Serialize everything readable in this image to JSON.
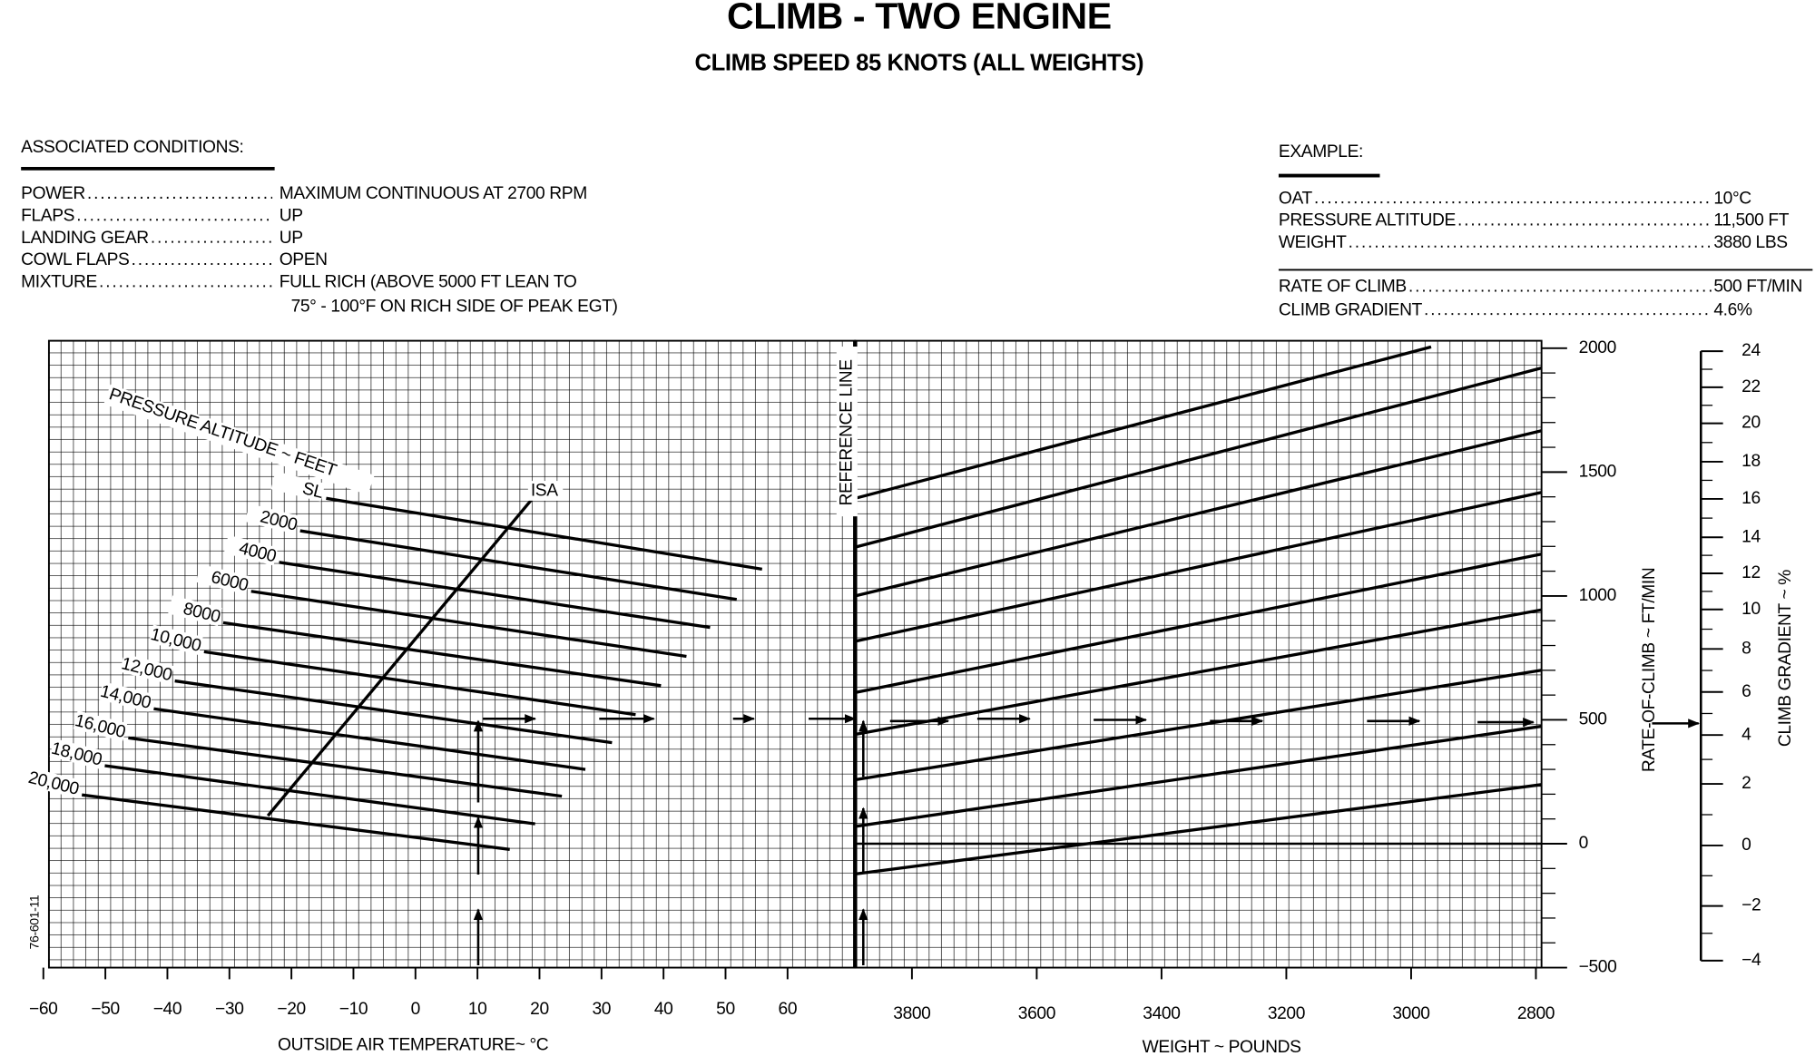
{
  "header": {
    "title": "CLIMB - TWO ENGINE",
    "subtitle": "CLIMB SPEED 85 KNOTS (ALL WEIGHTS)"
  },
  "associated_conditions": {
    "heading": "ASSOCIATED CONDITIONS:",
    "items": [
      {
        "label": "POWER",
        "value": [
          "MAXIMUM CONTINUOUS AT 2700 RPM"
        ]
      },
      {
        "label": "FLAPS",
        "value": [
          "UP"
        ]
      },
      {
        "label": "LANDING GEAR",
        "value": [
          "UP"
        ]
      },
      {
        "label": "COWL FLAPS",
        "value": [
          "OPEN"
        ]
      },
      {
        "label": "MIXTURE",
        "value": [
          "FULL RICH (ABOVE 5000 FT LEAN TO",
          "75° - 100°F ON RICH SIDE OF PEAK EGT)"
        ]
      }
    ]
  },
  "example": {
    "heading": "EXAMPLE:",
    "inputs": [
      {
        "label": "OAT",
        "value": "10°C"
      },
      {
        "label": "PRESSURE ALTITUDE",
        "value": "11,500 FT"
      },
      {
        "label": "WEIGHT",
        "value": "3880 LBS"
      }
    ],
    "results": [
      {
        "label": "RATE OF CLIMB",
        "value": "500 FT/MIN"
      },
      {
        "label": "CLIMB GRADIENT",
        "value": "4.6%"
      }
    ]
  },
  "chart_data": {
    "type": "line",
    "grid": true,
    "code": "76-601-11",
    "temperature_axis": {
      "label": "OUTSIDE AIR TEMPERATURE~ °C",
      "xlim": [
        -59.1,
        70.9
      ],
      "xticks": [
        {
          "value": -60,
          "label": "−60"
        },
        {
          "value": -50,
          "label": "−50"
        },
        {
          "value": -40,
          "label": "−40"
        },
        {
          "value": -30,
          "label": "−30"
        },
        {
          "value": -20,
          "label": "−20"
        },
        {
          "value": -10,
          "label": "−10"
        },
        0,
        10,
        20,
        30,
        40,
        50,
        60
      ]
    },
    "weight_axis": {
      "label": "WEIGHT ~ POUNDS",
      "xlim": [
        3891,
        2791
      ],
      "xticks": [
        3800,
        3600,
        3400,
        3200,
        3000,
        2800
      ]
    },
    "rate_axis": {
      "label": "RATE-OF-CLIMB ~ FT/MIN",
      "ylim": [
        -500,
        2030
      ],
      "yticks": [
        {
          "value": -500,
          "label": "−500"
        },
        0,
        500,
        1000,
        1500,
        2000
      ]
    },
    "gradient_axis": {
      "label": "CLIMB GRADIENT ~ %",
      "yticks": [
        {
          "value": -4,
          "label": "−4"
        },
        {
          "value": -2,
          "label": "−2"
        },
        0,
        2,
        4,
        6,
        8,
        10,
        12,
        14,
        16,
        18,
        20,
        22,
        24
      ]
    },
    "altitude_title": "PRESSURE ALTITUDE ~ FEET",
    "altitude_lines": [
      {
        "name": "SL",
        "x": [
          -14.4,
          55.9
        ],
        "values": [
          1394,
          1108
        ]
      },
      {
        "name": "2000",
        "x": [
          -18.6,
          51.8
        ],
        "values": [
          1263,
          986
        ]
      },
      {
        "name": "4000",
        "x": [
          -22.0,
          47.5
        ],
        "values": [
          1136,
          873
        ]
      },
      {
        "name": "6000",
        "x": [
          -26.5,
          43.7
        ],
        "values": [
          1019,
          756
        ]
      },
      {
        "name": "8000",
        "x": [
          -31.0,
          39.6
        ],
        "values": [
          892,
          638
        ]
      },
      {
        "name": "10,000",
        "x": [
          -34.1,
          35.5
        ],
        "values": [
          775,
          521
        ]
      },
      {
        "name": "12,000",
        "x": [
          -38.8,
          31.7
        ],
        "values": [
          657,
          408
        ]
      },
      {
        "name": "14,000",
        "x": [
          -42.2,
          27.4
        ],
        "values": [
          545,
          300
        ]
      },
      {
        "name": "16,000",
        "x": [
          -46.3,
          23.6
        ],
        "values": [
          427,
          192
        ]
      },
      {
        "name": "18,000",
        "x": [
          -50.1,
          19.3
        ],
        "values": [
          315,
          80
        ]
      },
      {
        "name": "20,000",
        "x": [
          -53.8,
          15.2
        ],
        "values": [
          197,
          -23
        ]
      }
    ],
    "isa_line": {
      "name": "ISA",
      "x": [
        -23.8,
        18.9
      ],
      "values": [
        113,
        1394
      ]
    },
    "reference_line": "REFERENCE LINE",
    "weight_lines": [
      {
        "x": [
          3891,
          2968
        ],
        "values": [
          1394,
          2005
        ]
      },
      {
        "x": [
          3891,
          2791
        ],
        "values": [
          1197,
          1920
        ]
      },
      {
        "x": [
          3891,
          2791
        ],
        "values": [
          1000,
          1667
        ]
      },
      {
        "x": [
          3891,
          2791
        ],
        "values": [
          817,
          1418
        ]
      },
      {
        "x": [
          3891,
          2791
        ],
        "values": [
          610,
          1169
        ]
      },
      {
        "x": [
          3891,
          2791
        ],
        "values": [
          441,
          944
        ]
      },
      {
        "x": [
          3891,
          2791
        ],
        "values": [
          258,
          700
        ]
      },
      {
        "x": [
          3891,
          2791
        ],
        "values": [
          70,
          474
        ]
      },
      {
        "x": [
          3891,
          2791
        ],
        "values": [
          -122,
          239
        ]
      }
    ]
  }
}
